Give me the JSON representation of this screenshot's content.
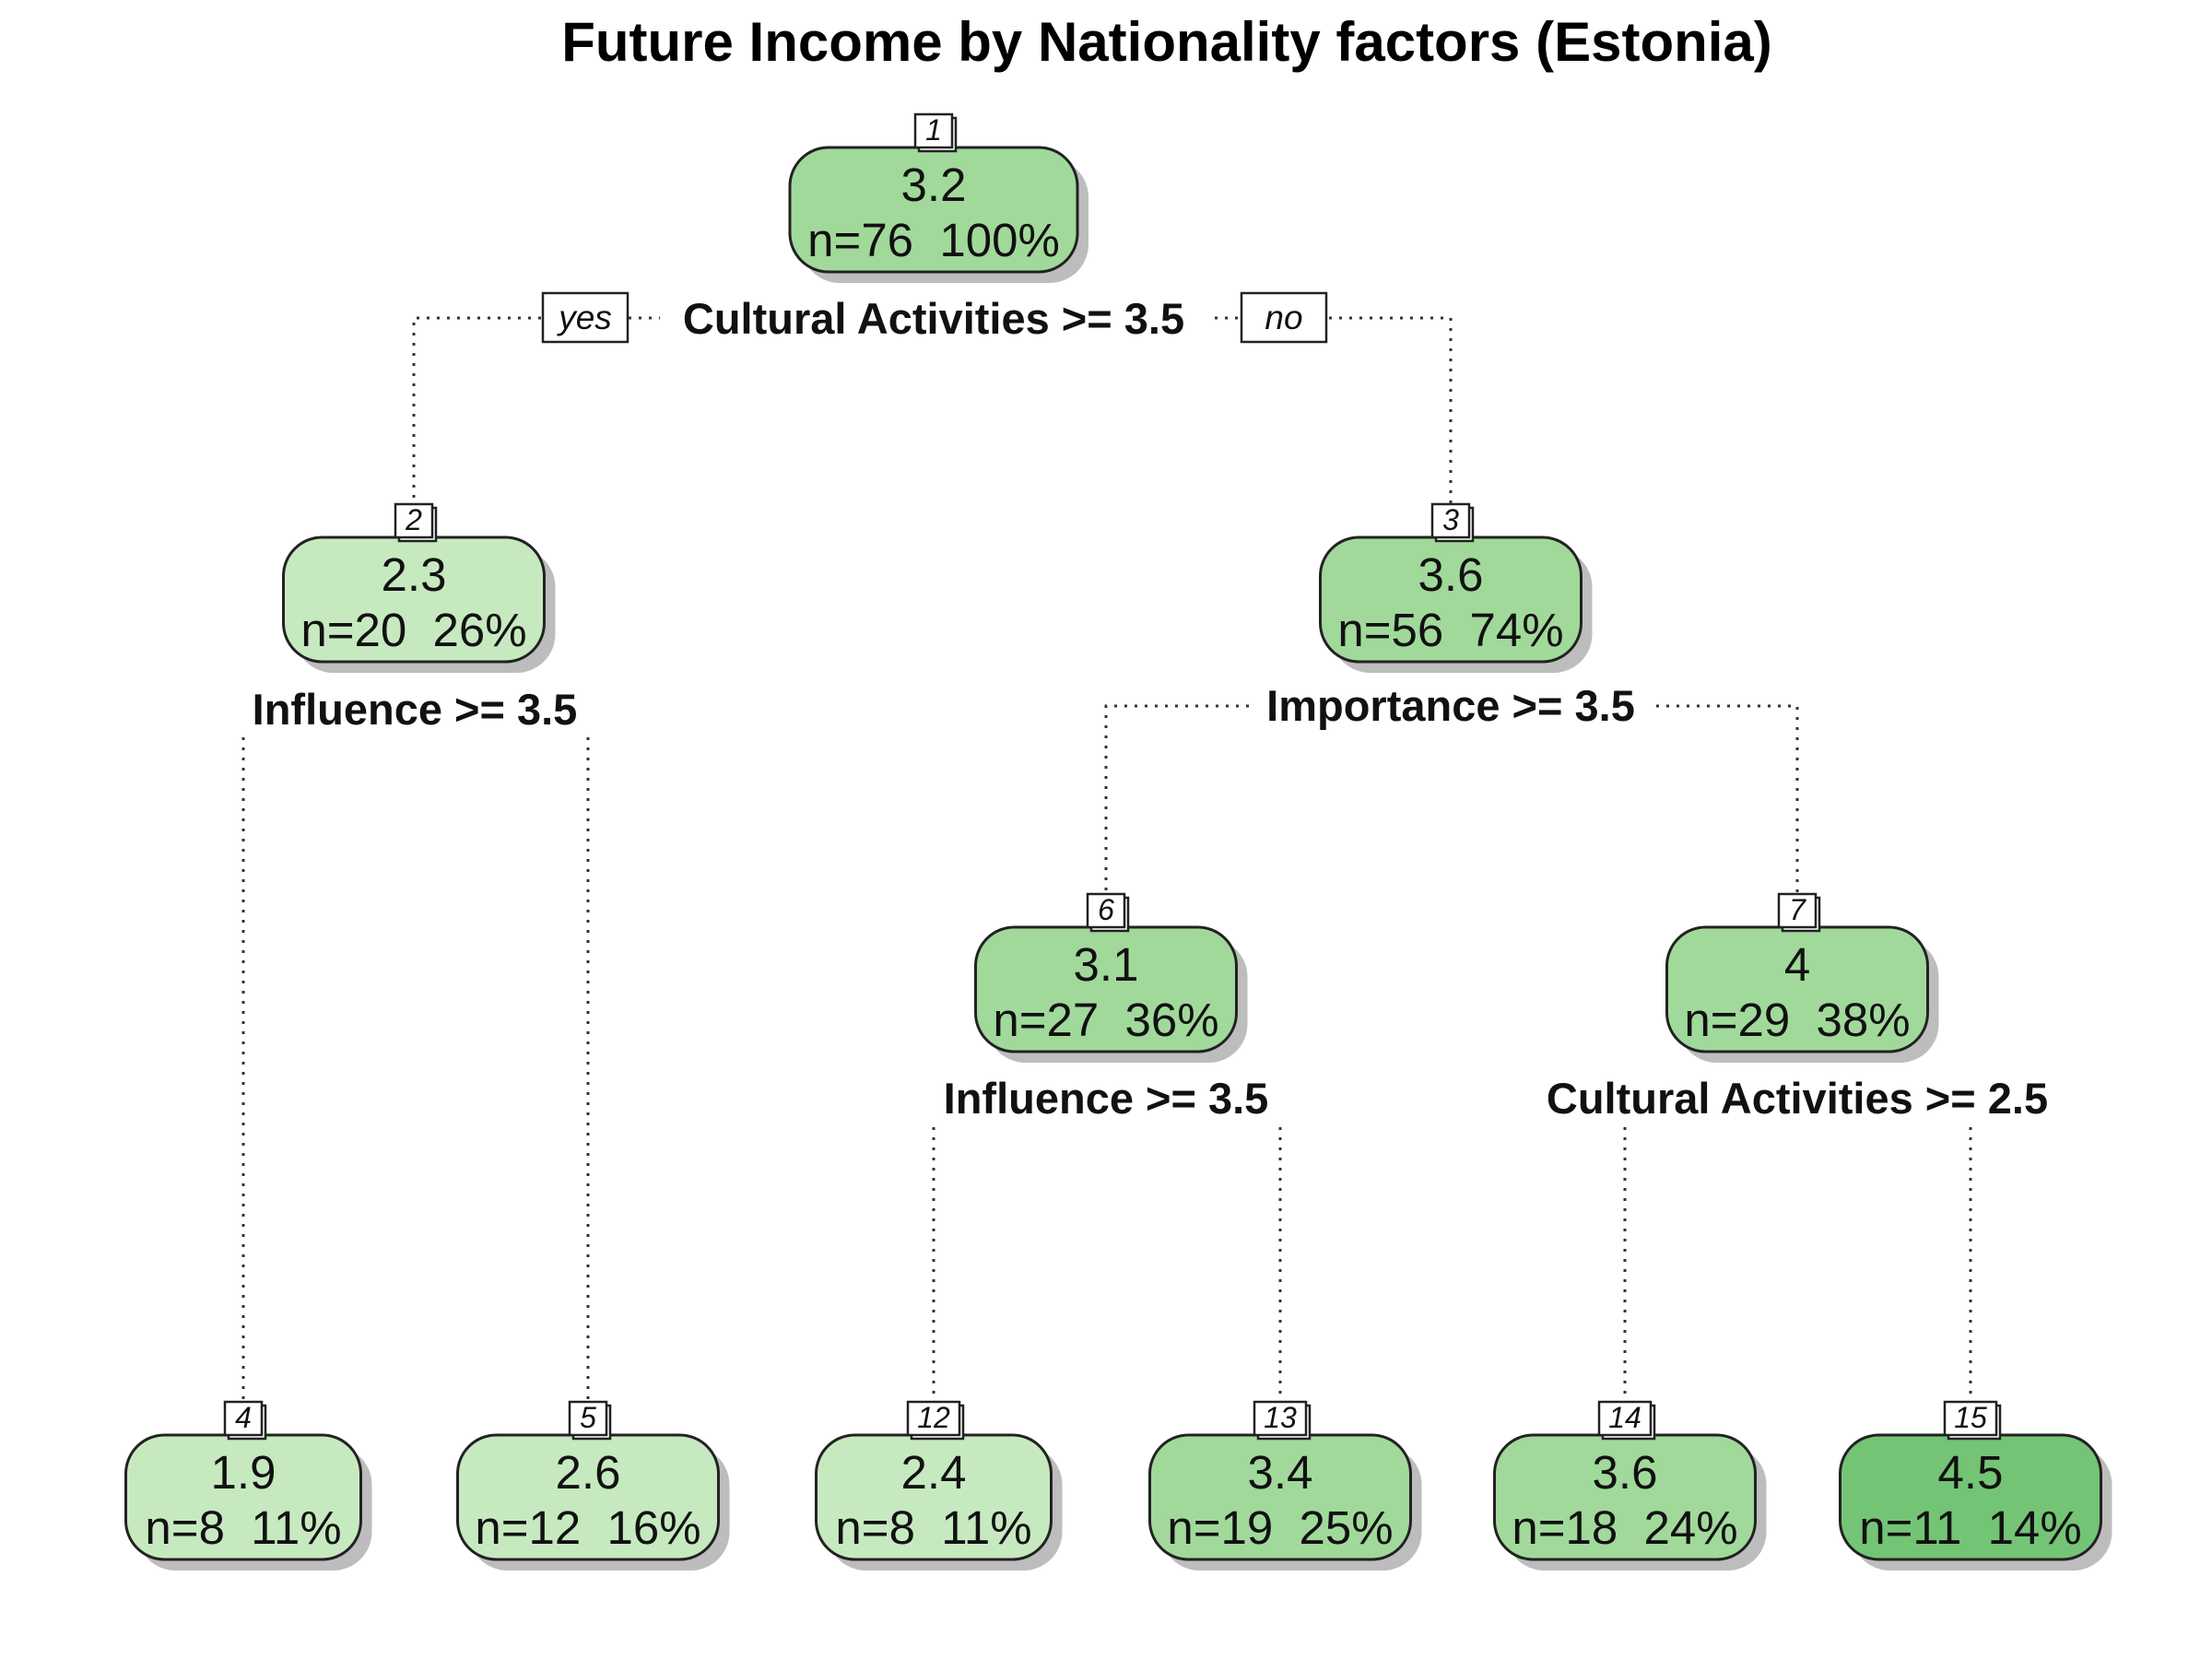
{
  "title": "Future Income by Nationality factors (Estonia)",
  "branch_labels": {
    "yes": "yes",
    "no": "no"
  },
  "nodes": [
    {
      "id": "1",
      "value": "3.2",
      "stats": "n=76  100%",
      "color": "#a1d99b"
    },
    {
      "id": "2",
      "value": "2.3",
      "stats": "n=20  26%",
      "color": "#c7e9c0"
    },
    {
      "id": "3",
      "value": "3.6",
      "stats": "n=56  74%",
      "color": "#a1d99b"
    },
    {
      "id": "6",
      "value": "3.1",
      "stats": "n=27  36%",
      "color": "#a1d99b"
    },
    {
      "id": "7",
      "value": "4",
      "stats": "n=29  38%",
      "color": "#a1d99b"
    },
    {
      "id": "4",
      "value": "1.9",
      "stats": "n=8  11%",
      "color": "#c7e9c0"
    },
    {
      "id": "5",
      "value": "2.6",
      "stats": "n=12  16%",
      "color": "#c7e9c0"
    },
    {
      "id": "12",
      "value": "2.4",
      "stats": "n=8  11%",
      "color": "#c7e9c0"
    },
    {
      "id": "13",
      "value": "3.4",
      "stats": "n=19  25%",
      "color": "#a1d99b"
    },
    {
      "id": "14",
      "value": "3.6",
      "stats": "n=18  24%",
      "color": "#a1d99b"
    },
    {
      "id": "15",
      "value": "4.5",
      "stats": "n=11  14%",
      "color": "#74c476"
    }
  ],
  "splits": [
    {
      "node": "1",
      "label": "Cultural Activities >= 3.5"
    },
    {
      "node": "2",
      "label": "Influence >= 3.5"
    },
    {
      "node": "3",
      "label": "Importance >= 3.5"
    },
    {
      "node": "6",
      "label": "Influence >= 3.5"
    },
    {
      "node": "7",
      "label": "Cultural Activities >= 2.5"
    }
  ]
}
